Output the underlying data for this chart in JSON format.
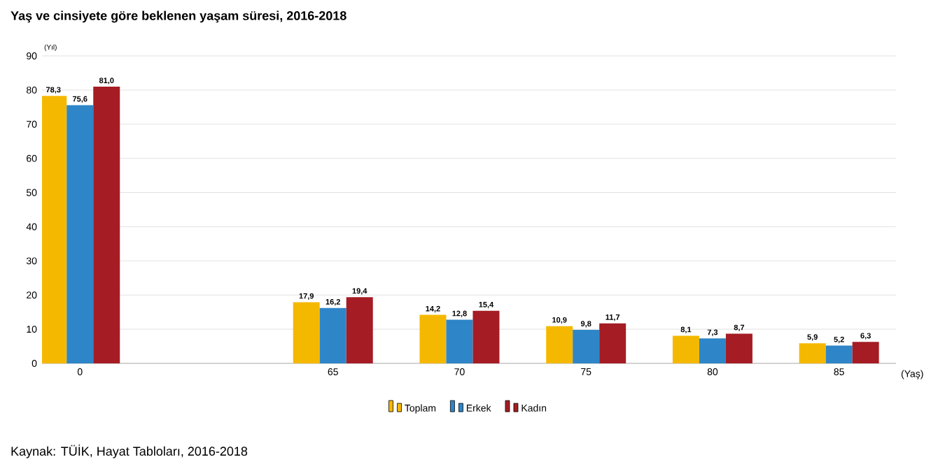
{
  "chart_data": {
    "type": "bar",
    "title": "Yaş ve cinsiyete göre beklenen yaşam süresi, 2016-2018",
    "xlabel": "(Yaş)",
    "ylabel": "(Yıl)",
    "categories": [
      "0",
      null,
      "65",
      "70",
      "75",
      "80",
      "85"
    ],
    "series": [
      {
        "name": "Toplam",
        "color": "#f5b800",
        "values": [
          78.3,
          null,
          17.9,
          14.2,
          10.9,
          8.1,
          5.9
        ],
        "value_labels": [
          "78,3",
          null,
          "17,9",
          "14,2",
          "10,9",
          "8,1",
          "5,9"
        ]
      },
      {
        "name": "Erkek",
        "color": "#2e86c8",
        "values": [
          75.6,
          null,
          16.2,
          12.8,
          9.8,
          7.3,
          5.2
        ],
        "value_labels": [
          "75,6",
          null,
          "16,2",
          "12,8",
          "9,8",
          "7,3",
          "5,2"
        ]
      },
      {
        "name": "Kadın",
        "color": "#a51c24",
        "values": [
          81.0,
          null,
          19.4,
          15.4,
          11.7,
          8.7,
          6.3
        ],
        "value_labels": [
          "81,0",
          null,
          "19,4",
          "15,4",
          "11,7",
          "8,7",
          "6,3"
        ]
      }
    ],
    "ylim": [
      0,
      90
    ],
    "yticks": [
      0,
      10,
      20,
      30,
      40,
      50,
      60,
      70,
      80,
      90
    ],
    "grid": "y",
    "legend": "bottom",
    "annotations": [
      "Kaynak: TÜİK, Hayat Tabloları, 2016-2018"
    ]
  }
}
